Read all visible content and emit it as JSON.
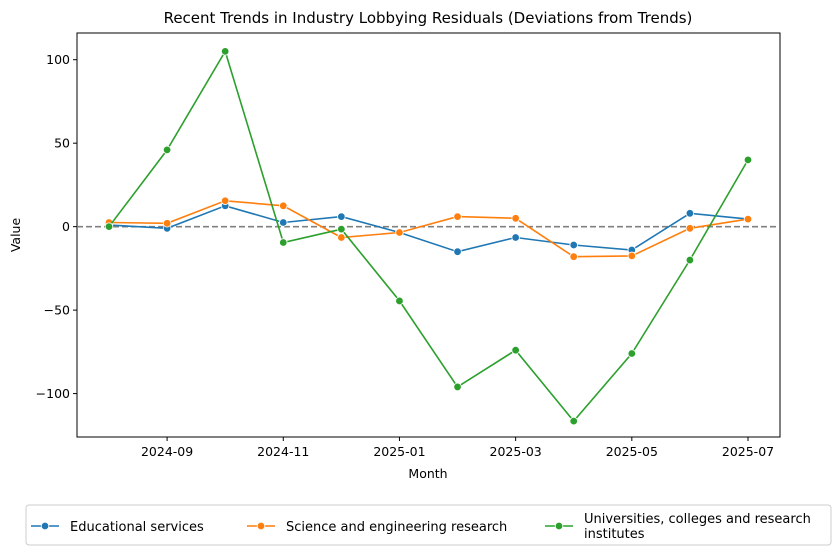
{
  "chart_data": {
    "type": "line",
    "title": "Recent Trends in Industry Lobbying Residuals (Deviations from Trends)",
    "xlabel": "Month",
    "ylabel": "Value",
    "x": [
      "2024-08",
      "2024-09",
      "2024-10",
      "2024-11",
      "2024-12",
      "2025-01",
      "2025-02",
      "2025-03",
      "2025-04",
      "2025-05",
      "2025-06",
      "2025-07"
    ],
    "xticks": [
      "2024-09",
      "2024-11",
      "2025-01",
      "2025-03",
      "2025-05",
      "2025-07"
    ],
    "yticks": [
      -100,
      -50,
      0,
      50,
      100
    ],
    "ylim": [
      -126,
      116
    ],
    "reference_line": 0,
    "series": [
      {
        "name": "Educational services",
        "color": "#1f77b4",
        "values": [
          1,
          -1,
          12.5,
          2.5,
          6,
          -3.5,
          -15,
          -6.5,
          -11,
          -14,
          8,
          4.5
        ]
      },
      {
        "name": "Science and engineering research",
        "color": "#ff7f0e",
        "values": [
          2.5,
          2,
          15.5,
          12.5,
          -6.5,
          -3.5,
          6,
          5,
          -18,
          -17.5,
          -1,
          4.5
        ]
      },
      {
        "name": "Universities, colleges and research institutes",
        "color": "#2ca02c",
        "values": [
          0,
          46,
          105,
          -9.5,
          -1.5,
          -44.5,
          -96,
          -74,
          -116.5,
          -76,
          -20,
          40
        ]
      }
    ],
    "legend": {
      "placement": "bottom-center",
      "entries": [
        "Educational services",
        "Science and engineering research",
        "Universities, colleges and research\ninstitutes"
      ]
    }
  }
}
